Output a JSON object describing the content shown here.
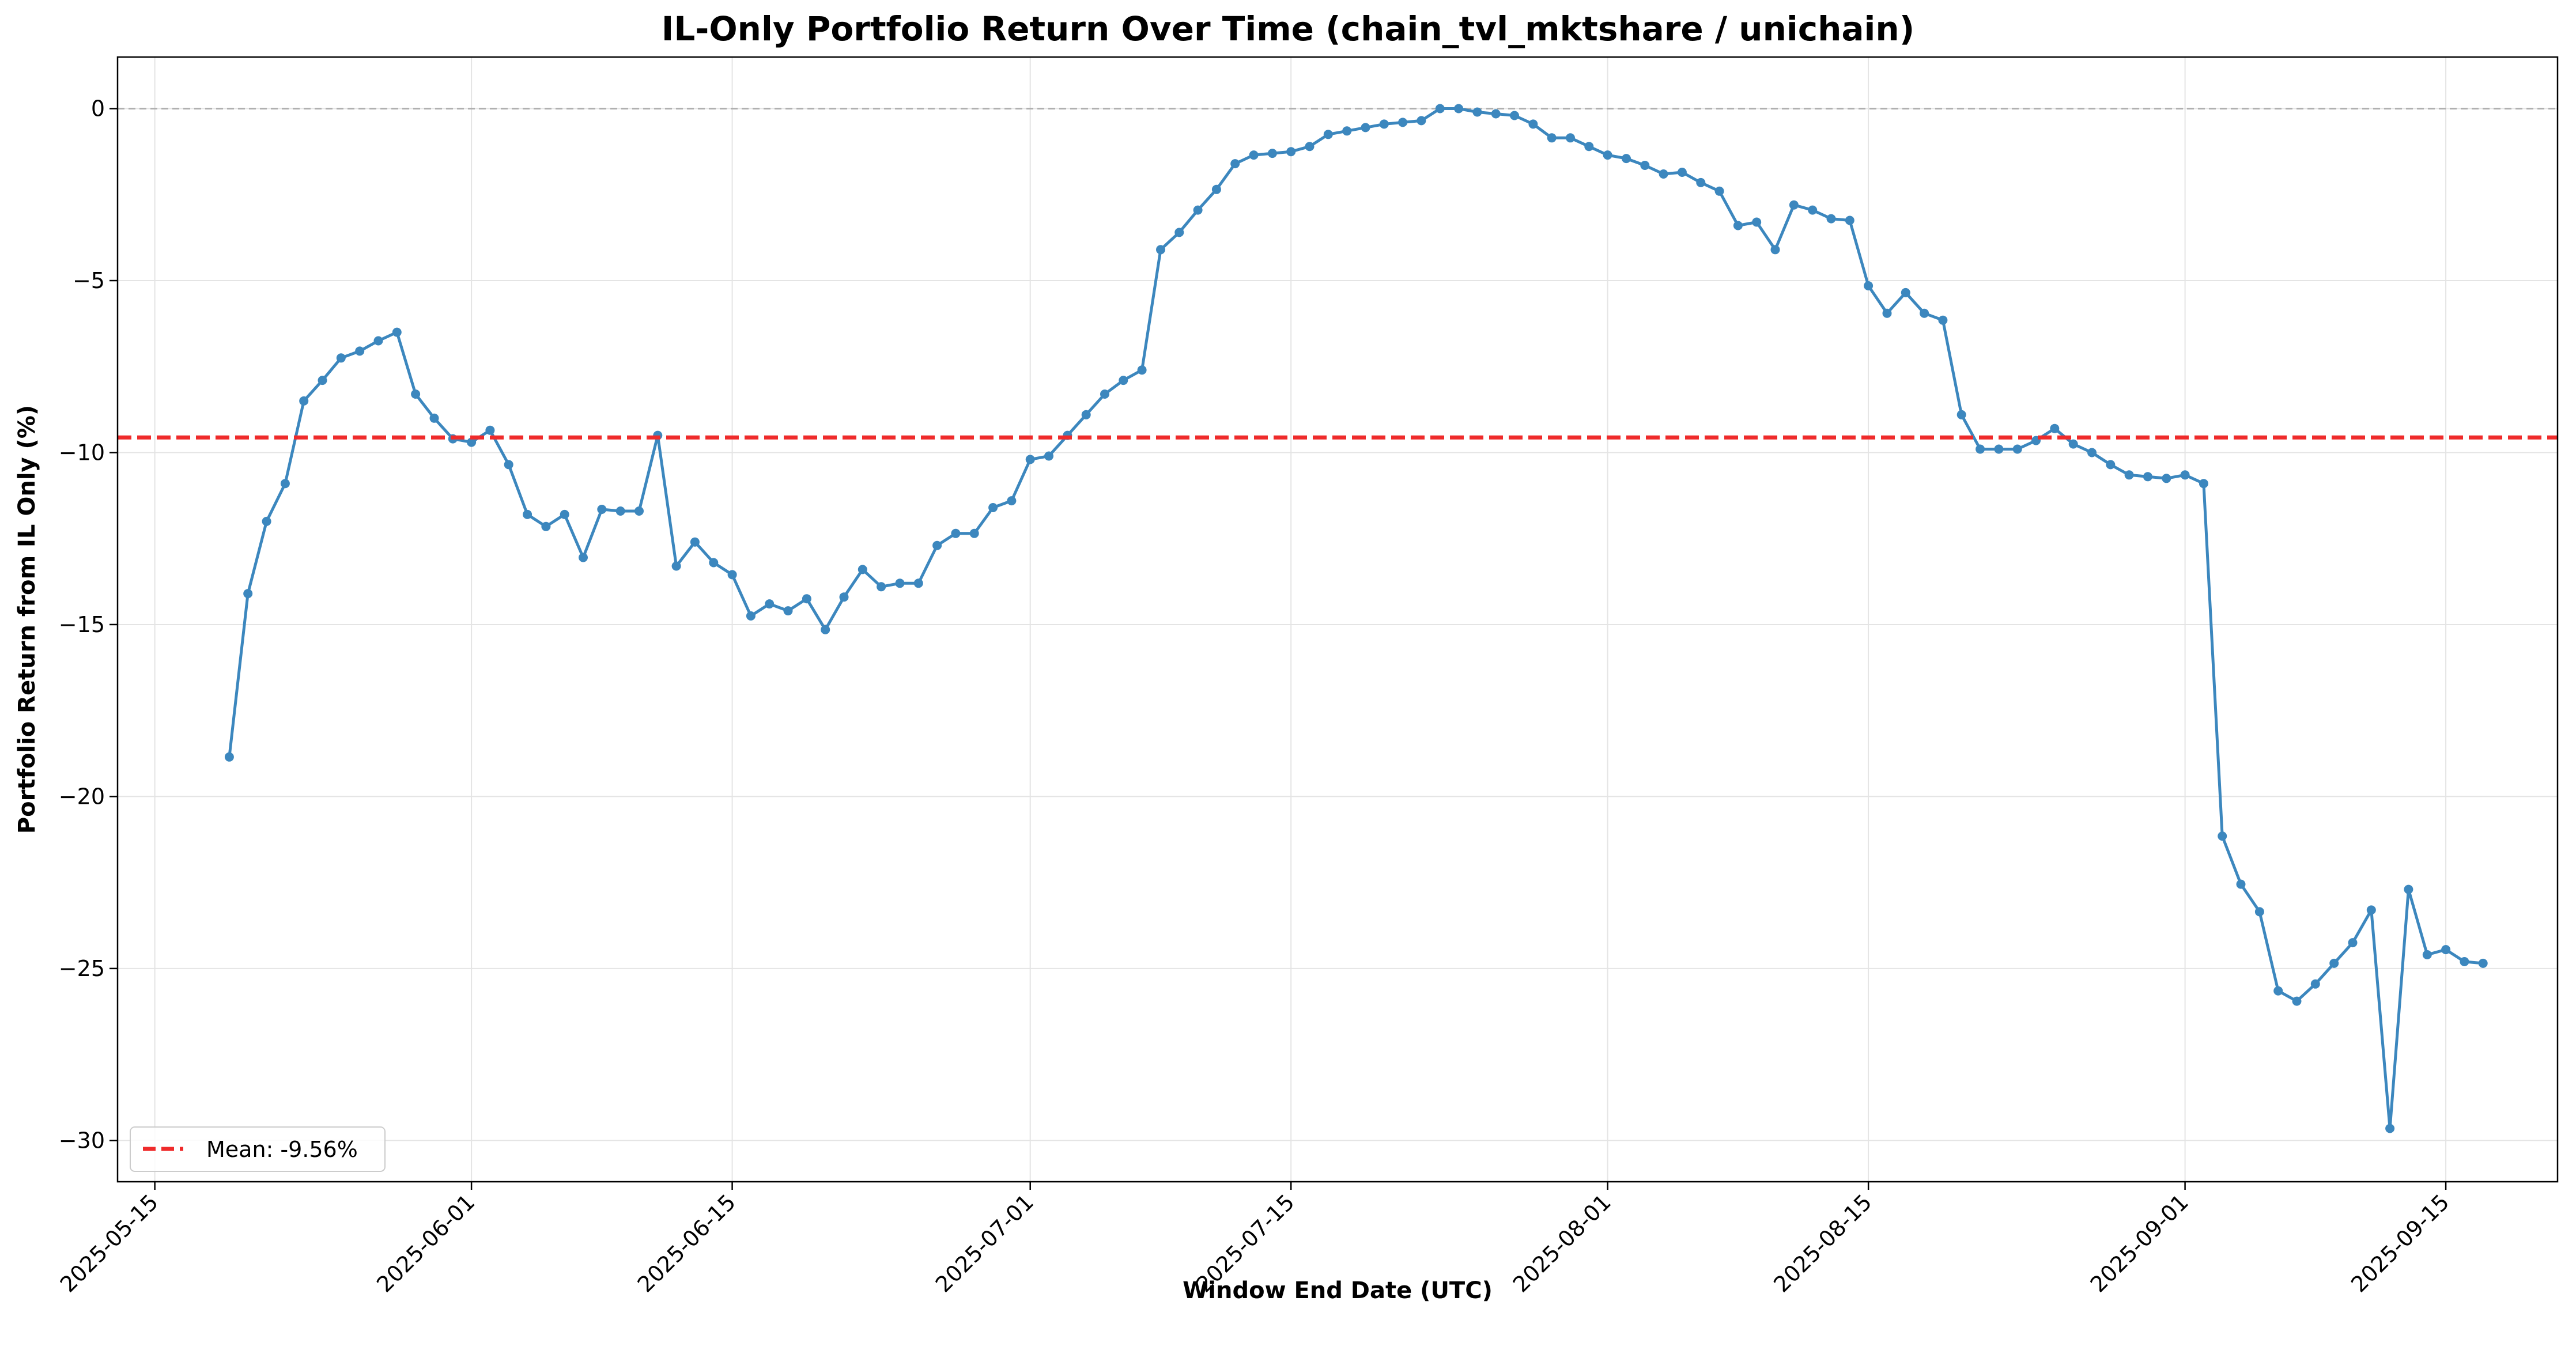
{
  "chart_data": {
    "type": "line",
    "title": "IL-Only Portfolio Return Over Time (chain_tvl_mktshare / unichain)",
    "xlabel": "Window End Date (UTC)",
    "ylabel": "Portfolio Return from IL Only (%)",
    "x_type": "date",
    "xlim": [
      "2025-05-13",
      "2025-09-21"
    ],
    "ylim": [
      -31.2,
      1.5
    ],
    "x_ticks": [
      "2025-05-15",
      "2025-06-01",
      "2025-06-15",
      "2025-07-01",
      "2025-07-15",
      "2025-08-01",
      "2025-08-15",
      "2025-09-01",
      "2025-09-15"
    ],
    "y_ticks": [
      0,
      -5,
      -10,
      -15,
      -20,
      -25,
      -30
    ],
    "y_tick_labels": [
      "0",
      "−5",
      "−10",
      "−15",
      "−20",
      "−25",
      "−30"
    ],
    "grid": true,
    "legend_position": "bottom-left",
    "colors": {
      "series": "#3c87be",
      "mean": "#ef2b2b",
      "zero_line": "#b0b0b0",
      "grid": "#e4e4e4"
    },
    "series": [
      {
        "name": "",
        "x": [
          "2025-05-19",
          "2025-05-20",
          "2025-05-21",
          "2025-05-22",
          "2025-05-23",
          "2025-05-24",
          "2025-05-25",
          "2025-05-26",
          "2025-05-27",
          "2025-05-28",
          "2025-05-29",
          "2025-05-30",
          "2025-05-31",
          "2025-06-01",
          "2025-06-02",
          "2025-06-03",
          "2025-06-04",
          "2025-06-05",
          "2025-06-06",
          "2025-06-07",
          "2025-06-08",
          "2025-06-09",
          "2025-06-10",
          "2025-06-11",
          "2025-06-12",
          "2025-06-13",
          "2025-06-14",
          "2025-06-15",
          "2025-06-16",
          "2025-06-17",
          "2025-06-18",
          "2025-06-19",
          "2025-06-20",
          "2025-06-21",
          "2025-06-22",
          "2025-06-23",
          "2025-06-24",
          "2025-06-25",
          "2025-06-26",
          "2025-06-27",
          "2025-06-28",
          "2025-06-29",
          "2025-06-30",
          "2025-07-01",
          "2025-07-02",
          "2025-07-03",
          "2025-07-04",
          "2025-07-05",
          "2025-07-06",
          "2025-07-07",
          "2025-07-08",
          "2025-07-09",
          "2025-07-10",
          "2025-07-11",
          "2025-07-12",
          "2025-07-13",
          "2025-07-14",
          "2025-07-15",
          "2025-07-16",
          "2025-07-17",
          "2025-07-18",
          "2025-07-19",
          "2025-07-20",
          "2025-07-21",
          "2025-07-22",
          "2025-07-23",
          "2025-07-24",
          "2025-07-25",
          "2025-07-26",
          "2025-07-27",
          "2025-07-28",
          "2025-07-29",
          "2025-07-30",
          "2025-07-31",
          "2025-08-01",
          "2025-08-02",
          "2025-08-03",
          "2025-08-04",
          "2025-08-05",
          "2025-08-06",
          "2025-08-07",
          "2025-08-08",
          "2025-08-09",
          "2025-08-10",
          "2025-08-11",
          "2025-08-12",
          "2025-08-13",
          "2025-08-14",
          "2025-08-15",
          "2025-08-16",
          "2025-08-17",
          "2025-08-18",
          "2025-08-19",
          "2025-08-20",
          "2025-08-21",
          "2025-08-22",
          "2025-08-23",
          "2025-08-24",
          "2025-08-25",
          "2025-08-26",
          "2025-08-27",
          "2025-08-28",
          "2025-08-29",
          "2025-08-30",
          "2025-08-31",
          "2025-09-01",
          "2025-09-02",
          "2025-09-03",
          "2025-09-04",
          "2025-09-05",
          "2025-09-06",
          "2025-09-07",
          "2025-09-08",
          "2025-09-09",
          "2025-09-10",
          "2025-09-11",
          "2025-09-12",
          "2025-09-13",
          "2025-09-14",
          "2025-09-15",
          "2025-09-16",
          "2025-09-17"
        ],
        "y": [
          -18.85,
          -14.1,
          -12.0,
          -10.9,
          -8.5,
          -7.9,
          -7.25,
          -7.05,
          -6.75,
          -6.5,
          -8.3,
          -9.0,
          -9.6,
          -9.7,
          -9.35,
          -10.35,
          -11.8,
          -12.15,
          -11.8,
          -13.05,
          -11.65,
          -11.7,
          -11.7,
          -9.5,
          -13.3,
          -12.6,
          -13.2,
          -13.55,
          -14.75,
          -14.4,
          -14.6,
          -14.25,
          -15.15,
          -14.2,
          -13.4,
          -13.9,
          -13.8,
          -13.8,
          -12.7,
          -12.35,
          -12.35,
          -11.6,
          -11.4,
          -10.2,
          -10.1,
          -9.5,
          -8.9,
          -8.3,
          -7.9,
          -7.6,
          -4.1,
          -3.6,
          -2.95,
          -2.35,
          -1.6,
          -1.35,
          -1.3,
          -1.25,
          -1.1,
          -0.75,
          -0.65,
          -0.55,
          -0.45,
          -0.4,
          -0.35,
          0.0,
          0.0,
          -0.1,
          -0.15,
          -0.2,
          -0.45,
          -0.85,
          -0.85,
          -1.1,
          -1.35,
          -1.45,
          -1.65,
          -1.9,
          -1.85,
          -2.15,
          -2.4,
          -3.4,
          -3.3,
          -4.1,
          -2.8,
          -2.95,
          -3.2,
          -3.25,
          -5.15,
          -5.95,
          -5.35,
          -5.95,
          -6.15,
          -8.9,
          -9.9,
          -9.9,
          -9.9,
          -9.65,
          -9.3,
          -9.75,
          -10.0,
          -10.35,
          -10.65,
          -10.7,
          -10.75,
          -10.65,
          -10.9,
          -21.15,
          -22.55,
          -23.35,
          -25.65,
          -25.95,
          -25.45,
          -24.85,
          -24.25,
          -23.3,
          -29.65,
          -22.7,
          -24.6,
          -24.45,
          -24.8,
          -24.85
        ]
      }
    ],
    "mean_line": {
      "value": -9.56,
      "label": "Mean: -9.56%"
    }
  }
}
